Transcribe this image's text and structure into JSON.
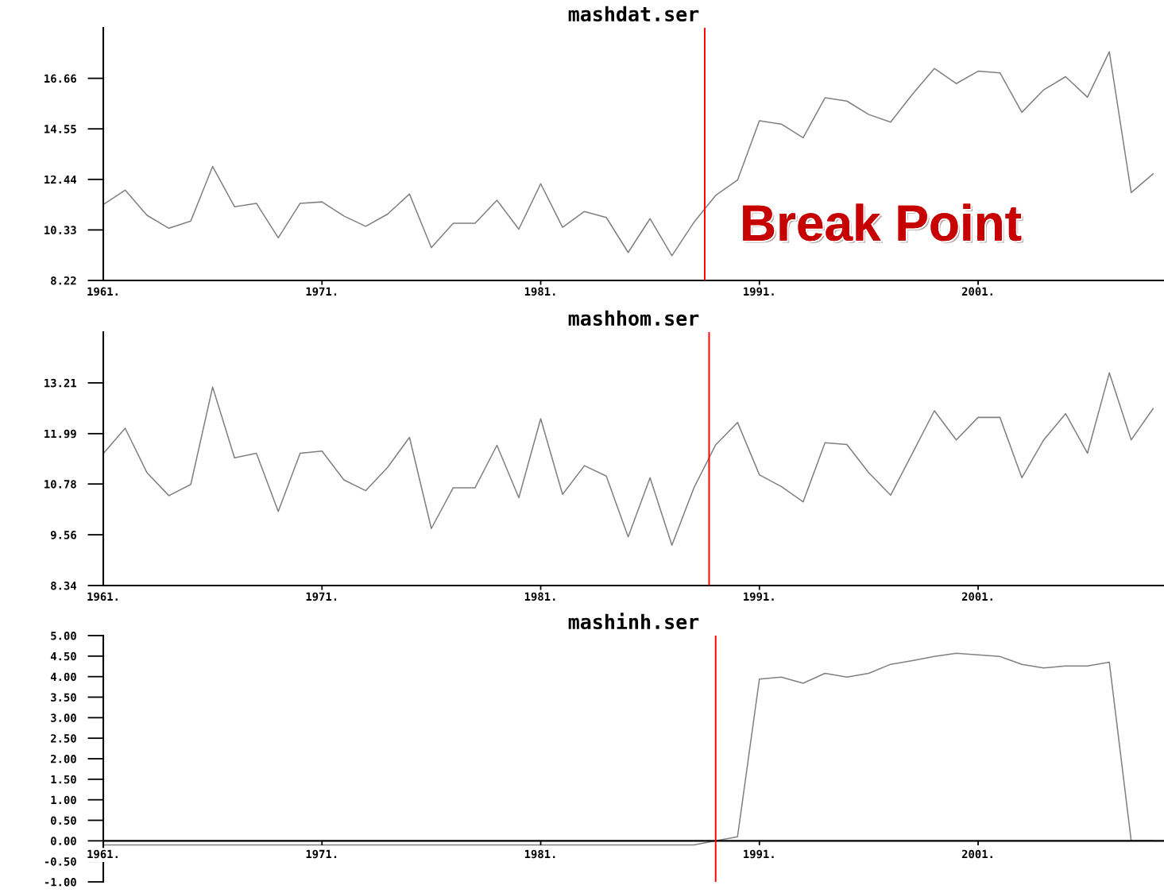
{
  "chart_data": [
    {
      "type": "line",
      "title": "mashdat.ser",
      "x": [
        1961,
        1962,
        1963,
        1964,
        1965,
        1966,
        1967,
        1968,
        1969,
        1970,
        1971,
        1972,
        1973,
        1974,
        1975,
        1976,
        1977,
        1978,
        1979,
        1980,
        1981,
        1982,
        1983,
        1984,
        1985,
        1986,
        1987,
        1988,
        1989,
        1990,
        1991,
        1992,
        1993,
        1994,
        1995,
        1996,
        1997,
        1998,
        1999,
        2000,
        2001,
        2002,
        2003,
        2004,
        2005,
        2006,
        2007,
        2008,
        2009
      ],
      "series": [
        {
          "color": "#808080",
          "values": [
            11.39,
            11.99,
            10.94,
            10.4,
            10.7,
            12.98,
            11.3,
            11.44,
            10.0,
            11.44,
            11.5,
            10.91,
            10.48,
            10.99,
            11.83,
            9.59,
            10.61,
            10.61,
            11.57,
            10.36,
            12.26,
            10.44,
            11.1,
            10.85,
            9.39,
            10.8,
            9.25,
            10.64,
            11.77,
            12.41,
            14.89,
            14.75,
            14.18,
            15.85,
            15.71,
            15.15,
            14.83,
            16.0,
            17.07,
            16.44,
            16.96,
            16.89,
            15.24,
            16.18,
            16.73,
            15.87,
            17.77,
            11.89,
            12.67
          ]
        }
      ],
      "xlim": [
        1961,
        2009.5
      ],
      "ylim": [
        8.22,
        18.77
      ],
      "xticks": [
        {
          "value": 1961,
          "label": "1961."
        },
        {
          "value": 1971,
          "label": "1971."
        },
        {
          "value": 1981,
          "label": "1981."
        },
        {
          "value": 1991,
          "label": "1991."
        },
        {
          "value": 2001,
          "label": "2001."
        }
      ],
      "yticks": [
        8.22,
        10.33,
        12.44,
        14.55,
        16.66
      ],
      "ref_lines": [
        {
          "axis": "x",
          "value": 1988.5,
          "color": "#ff0000",
          "label": "Break Point"
        }
      ]
    },
    {
      "type": "line",
      "title": "mashhom.ser",
      "x": [
        1961,
        1962,
        1963,
        1964,
        1965,
        1966,
        1967,
        1968,
        1969,
        1970,
        1971,
        1972,
        1973,
        1974,
        1975,
        1976,
        1977,
        1978,
        1979,
        1980,
        1981,
        1982,
        1983,
        1984,
        1985,
        1986,
        1987,
        1988,
        1989,
        1990,
        1991,
        1992,
        1993,
        1994,
        1995,
        1996,
        1997,
        1998,
        1999,
        2000,
        2001,
        2002,
        2003,
        2004,
        2005,
        2006,
        2007,
        2008,
        2009
      ],
      "series": [
        {
          "color": "#808080",
          "values": [
            11.51,
            12.12,
            11.05,
            10.5,
            10.77,
            13.11,
            11.41,
            11.52,
            10.12,
            11.52,
            11.57,
            10.88,
            10.62,
            11.18,
            11.9,
            9.71,
            10.69,
            10.69,
            11.71,
            10.45,
            12.35,
            10.53,
            11.22,
            10.97,
            9.51,
            10.93,
            9.31,
            10.68,
            11.72,
            12.26,
            11.0,
            10.72,
            10.35,
            11.77,
            11.73,
            11.05,
            10.51,
            11.52,
            12.54,
            11.84,
            12.38,
            12.38,
            10.93,
            11.84,
            12.47,
            11.52,
            13.45,
            11.84,
            12.59
          ]
        }
      ],
      "xlim": [
        1961,
        2009.5
      ],
      "ylim": [
        8.34,
        14.43
      ],
      "xticks": [
        {
          "value": 1961,
          "label": "1961."
        },
        {
          "value": 1971,
          "label": "1971."
        },
        {
          "value": 1981,
          "label": "1981."
        },
        {
          "value": 1991,
          "label": "1991."
        },
        {
          "value": 2001,
          "label": "2001."
        }
      ],
      "yticks": [
        8.34,
        9.56,
        10.78,
        11.99,
        13.21
      ],
      "ref_lines": [
        {
          "axis": "x",
          "value": 1988.7,
          "color": "#ff0000"
        }
      ]
    },
    {
      "type": "line",
      "title": "mashinh.ser",
      "x": [
        1961,
        1962,
        1963,
        1964,
        1965,
        1966,
        1967,
        1968,
        1969,
        1970,
        1971,
        1972,
        1973,
        1974,
        1975,
        1976,
        1977,
        1978,
        1979,
        1980,
        1981,
        1982,
        1983,
        1984,
        1985,
        1986,
        1987,
        1988,
        1989,
        1990,
        1991,
        1992,
        1993,
        1994,
        1995,
        1996,
        1997,
        1998,
        1999,
        2000,
        2001,
        2002,
        2003,
        2004,
        2005,
        2006,
        2007,
        2008,
        2009
      ],
      "series": [
        {
          "color": "#808080",
          "values": [
            -0.1,
            -0.1,
            -0.1,
            -0.1,
            -0.1,
            -0.1,
            -0.1,
            -0.1,
            -0.1,
            -0.1,
            -0.1,
            -0.1,
            -0.1,
            -0.1,
            -0.1,
            -0.1,
            -0.1,
            -0.1,
            -0.1,
            -0.1,
            -0.1,
            -0.1,
            -0.1,
            -0.1,
            -0.1,
            -0.1,
            -0.1,
            -0.1,
            0.0,
            0.1,
            3.94,
            3.99,
            3.84,
            4.08,
            3.99,
            4.08,
            4.3,
            4.39,
            4.49,
            4.57,
            4.53,
            4.49,
            4.3,
            4.21,
            4.26,
            4.26,
            4.35,
            0.0,
            0.0
          ]
        }
      ],
      "xlim": [
        1961,
        2009.5
      ],
      "ylim": [
        -1,
        5
      ],
      "xticks": [
        {
          "value": 1961,
          "label": "1961."
        },
        {
          "value": 1971,
          "label": "1971."
        },
        {
          "value": 1981,
          "label": "1981."
        },
        {
          "value": 1991,
          "label": "1991."
        },
        {
          "value": 2001,
          "label": "2001."
        }
      ],
      "yticks": [
        {
          "value": -1,
          "label": "-1.00"
        },
        {
          "value": -0.5,
          "label": "-0.50"
        },
        {
          "value": 0,
          "label": "0.00"
        },
        {
          "value": 0.5,
          "label": "0.50"
        },
        {
          "value": 1,
          "label": "1.00"
        },
        {
          "value": 1.5,
          "label": "1.50"
        },
        {
          "value": 2,
          "label": "2.00"
        },
        {
          "value": 2.5,
          "label": "2.50"
        },
        {
          "value": 3,
          "label": "3.00"
        },
        {
          "value": 3.5,
          "label": "3.50"
        },
        {
          "value": 4,
          "label": "4.00"
        },
        {
          "value": 4.5,
          "label": "4.50"
        },
        {
          "value": 5,
          "label": "5.00"
        }
      ],
      "ref_lines": [
        {
          "axis": "x",
          "value": 1989.0,
          "color": "#ff0000"
        }
      ]
    }
  ]
}
